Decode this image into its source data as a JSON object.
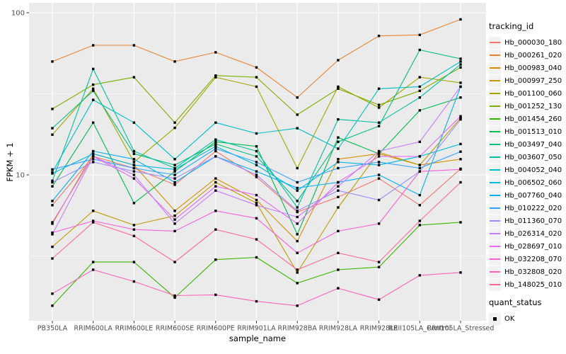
{
  "figure": {
    "background": "#FFFFFF",
    "panel_background": "#EBEBEB",
    "grid_color": "#FFFFFF",
    "tick_label_color": "#4D4D4D",
    "tick_mark_color": "#333333",
    "point_color": "#000000"
  },
  "chart_data": {
    "type": "line",
    "title": "",
    "xlabel": "sample_name",
    "ylabel": "FPKM + 1",
    "y_scale": "log10",
    "ylim": [
      1.26,
      115
    ],
    "grid": true,
    "legend_position": "right",
    "point_marker": "black-square",
    "y_ticks": [
      {
        "value": 100,
        "label": "100"
      },
      {
        "value": 10,
        "label": "10"
      }
    ],
    "y_minor_breaks": [
      31.62,
      3.162
    ],
    "categories": [
      "PB350LA",
      "RRIM600LA",
      "RRIM600LE",
      "RRIM600SE",
      "RRIM600PE",
      "RRIM901LA",
      "RRIM928BA",
      "RRIM928LA",
      "RRIM928LE",
      "RRII105LA_Control",
      "RRII105LA_Stressed"
    ],
    "series": [
      {
        "name": "Hb_000030_180",
        "color": "#F8766D",
        "values": [
          6.5,
          13,
          11,
          8.7,
          14,
          9.7,
          5.9,
          7.3,
          9.5,
          6.5,
          10.9
        ]
      },
      {
        "name": "Hb_000261_020",
        "color": "#EA8331",
        "values": [
          50,
          63,
          63,
          50,
          57,
          46,
          30,
          51,
          72,
          73,
          91
        ]
      },
      {
        "name": "Hb_000983_040",
        "color": "#D89000",
        "values": [
          5,
          13.5,
          11.5,
          6,
          9.5,
          7,
          3.9,
          12.5,
          13.5,
          11.5,
          12.5
        ]
      },
      {
        "name": "Hb_000997_250",
        "color": "#C09B00",
        "values": [
          3.6,
          6,
          4.9,
          5.6,
          9,
          6.7,
          2.5,
          6.3,
          13.8,
          11.5,
          22.4
        ]
      },
      {
        "name": "Hb_001100_060",
        "color": "#A3A500",
        "values": [
          17.7,
          34,
          12,
          19.5,
          40,
          35,
          11,
          35,
          26,
          40,
          37
        ]
      },
      {
        "name": "Hb_001252_130",
        "color": "#7CAE00",
        "values": [
          25.5,
          36,
          40,
          21,
          41,
          40,
          23.5,
          34,
          27,
          33,
          46
        ]
      },
      {
        "name": "Hb_001454_260",
        "color": "#39B600",
        "values": [
          1.56,
          2.9,
          2.9,
          1.75,
          3,
          3.1,
          2.15,
          2.6,
          2.7,
          4.9,
          5.1
        ]
      },
      {
        "name": "Hb_001513_010",
        "color": "#00BB4E",
        "values": [
          8.5,
          21,
          6.7,
          10.5,
          16,
          15,
          4.3,
          17,
          13.5,
          25,
          30
        ]
      },
      {
        "name": "Hb_003497_040",
        "color": "#00BF7D",
        "values": [
          19.4,
          33,
          13.5,
          11.5,
          15.5,
          13,
          6.9,
          16,
          20,
          59,
          52
        ]
      },
      {
        "name": "Hb_003607_050",
        "color": "#00C1A3",
        "values": [
          9.2,
          45,
          14,
          11,
          16.5,
          14,
          6.3,
          22,
          21,
          30,
          48
        ]
      },
      {
        "name": "Hb_004052_040",
        "color": "#00BFC4",
        "values": [
          10.4,
          29,
          21,
          12.5,
          21,
          18,
          19.4,
          14.5,
          34,
          35,
          50
        ]
      },
      {
        "name": "Hb_006502_060",
        "color": "#00BAE0",
        "values": [
          10.2,
          13.5,
          11.5,
          10.8,
          15,
          11.5,
          8,
          12,
          11.5,
          13,
          15.5
        ]
      },
      {
        "name": "Hb_007760_040",
        "color": "#00B0F6",
        "values": [
          6.9,
          14,
          12.5,
          9,
          13,
          10.5,
          8.3,
          9,
          10,
          7.5,
          35
        ]
      },
      {
        "name": "Hb_010222_020",
        "color": "#35A2FF",
        "values": [
          10.8,
          12.5,
          11,
          10,
          14.5,
          12,
          9,
          11,
          12,
          11,
          13.9
        ]
      },
      {
        "name": "Hb_011360_070",
        "color": "#9590FF",
        "values": [
          9,
          12,
          10.5,
          9.5,
          13,
          10,
          6,
          8,
          7,
          10.5,
          22
        ]
      },
      {
        "name": "Hb_026314_020",
        "color": "#C77CFF",
        "values": [
          4.3,
          13,
          10,
          5,
          8,
          6.5,
          5.5,
          8.5,
          14,
          16,
          35
        ]
      },
      {
        "name": "Hb_028697_010",
        "color": "#E76BF3",
        "values": [
          5.1,
          13,
          9.5,
          5.3,
          8.5,
          7.5,
          5,
          9,
          13,
          13,
          23
        ]
      },
      {
        "name": "Hb_032208_070",
        "color": "#FA62DB",
        "values": [
          4.4,
          5.2,
          4.6,
          4.5,
          6,
          5.4,
          3.3,
          4.5,
          5,
          10.5,
          10.8
        ]
      },
      {
        "name": "Hb_032808_020",
        "color": "#FF62BC",
        "values": [
          1.85,
          2.6,
          2.2,
          1.8,
          1.82,
          1.66,
          1.56,
          2,
          1.7,
          2.4,
          2.5
        ]
      },
      {
        "name": "Hb_148025_010",
        "color": "#FF6A98",
        "values": [
          3.05,
          5.1,
          4.2,
          2.9,
          4.6,
          4,
          2.6,
          3.3,
          2.9,
          5.2,
          9
        ]
      }
    ],
    "legends": {
      "tracking_id_title": "tracking_id",
      "quant_status_title": "quant_status",
      "quant_status_items": [
        {
          "label": "OK",
          "marker": "black-square"
        }
      ]
    }
  }
}
